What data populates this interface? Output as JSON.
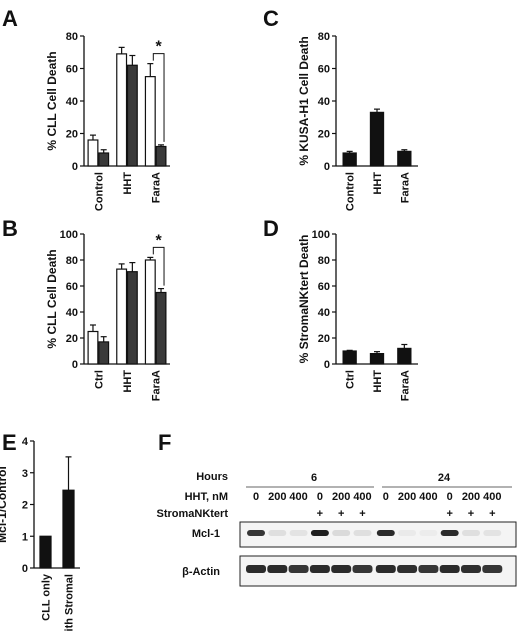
{
  "panels": {
    "A": {
      "letter": "A"
    },
    "B": {
      "letter": "B"
    },
    "C": {
      "letter": "C"
    },
    "D": {
      "letter": "D"
    },
    "E": {
      "letter": "E"
    },
    "F": {
      "letter": "F"
    }
  },
  "colors": {
    "open_bar": "#ffffff",
    "filled_bar": "#3a3a3a",
    "black_bar": "#111111",
    "axis": "#111111"
  },
  "chart_data": [
    {
      "id": "A",
      "type": "bar",
      "title": "",
      "ylabel": "% CLL Cell Death",
      "xlabel": "",
      "ylim": [
        0,
        80
      ],
      "yticks": [
        0,
        20,
        40,
        60,
        80
      ],
      "categories": [
        "Control",
        "HHT",
        "FaraA"
      ],
      "series": [
        {
          "style": "open",
          "values": [
            16,
            69,
            55
          ],
          "errors": [
            3,
            4,
            8
          ]
        },
        {
          "style": "filled",
          "values": [
            8,
            62,
            12
          ],
          "errors": [
            2,
            6,
            1
          ]
        }
      ],
      "annotation": {
        "text": "*",
        "between_category": "FaraA"
      }
    },
    {
      "id": "B",
      "type": "bar",
      "title": "",
      "ylabel": "% CLL Cell Death",
      "xlabel": "",
      "ylim": [
        0,
        100
      ],
      "yticks": [
        0,
        20,
        40,
        60,
        80,
        100
      ],
      "categories": [
        "Ctrl",
        "HHT",
        "FaraA"
      ],
      "series": [
        {
          "style": "open",
          "values": [
            25,
            73,
            80
          ],
          "errors": [
            5,
            4,
            2
          ]
        },
        {
          "style": "filled",
          "values": [
            17,
            71,
            55
          ],
          "errors": [
            4,
            7,
            3
          ]
        }
      ],
      "annotation": {
        "text": "*",
        "between_category": "FaraA"
      }
    },
    {
      "id": "C",
      "type": "bar",
      "title": "",
      "ylabel": "% KUSA-H1 Cell Death",
      "xlabel": "",
      "ylim": [
        0,
        80
      ],
      "yticks": [
        0,
        20,
        40,
        60,
        80
      ],
      "categories": [
        "Control",
        "HHT",
        "FaraA"
      ],
      "series": [
        {
          "style": "black",
          "values": [
            8,
            33,
            9
          ],
          "errors": [
            1,
            2,
            1
          ]
        }
      ]
    },
    {
      "id": "D",
      "type": "bar",
      "title": "",
      "ylabel": "% StromaNKtert Death",
      "xlabel": "",
      "ylim": [
        0,
        100
      ],
      "yticks": [
        0,
        20,
        40,
        60,
        80,
        100
      ],
      "categories": [
        "Ctrl",
        "HHT",
        "FaraA"
      ],
      "series": [
        {
          "style": "black",
          "values": [
            10,
            8,
            12
          ],
          "errors": [
            0.5,
            1.5,
            3
          ]
        }
      ]
    },
    {
      "id": "E",
      "type": "bar",
      "title": "",
      "ylabel": "Mcl-1/Control",
      "xlabel": "",
      "ylim": [
        0,
        4
      ],
      "yticks": [
        0,
        1,
        2,
        3,
        4
      ],
      "categories": [
        "CLL only",
        "With Stromal"
      ],
      "series": [
        {
          "style": "black",
          "values": [
            1,
            2.45
          ],
          "errors": [
            0,
            1.05
          ]
        }
      ]
    }
  ],
  "blot": {
    "row_labels": {
      "hours": "Hours",
      "hht": "HHT, nM",
      "stroma": "StromaNKtert"
    },
    "hour_groups": [
      "6",
      "24"
    ],
    "hht_values": [
      "0",
      "200",
      "400",
      "0",
      "200",
      "400",
      "0",
      "200",
      "400",
      "0",
      "200",
      "400"
    ],
    "stroma_values": [
      "",
      "",
      "",
      "+",
      "+",
      "+",
      "",
      "",
      "",
      "+",
      "+",
      "+"
    ],
    "bands": {
      "mcl1": "Mcl-1",
      "actin": "β-Actin"
    },
    "mcl1_intensity": [
      0.85,
      0.1,
      0.08,
      0.95,
      0.12,
      0.1,
      0.9,
      0.05,
      0.04,
      0.9,
      0.1,
      0.08
    ],
    "actin_intensity": [
      0.9,
      0.9,
      0.85,
      0.9,
      0.9,
      0.85,
      0.9,
      0.88,
      0.85,
      0.9,
      0.88,
      0.85
    ]
  }
}
